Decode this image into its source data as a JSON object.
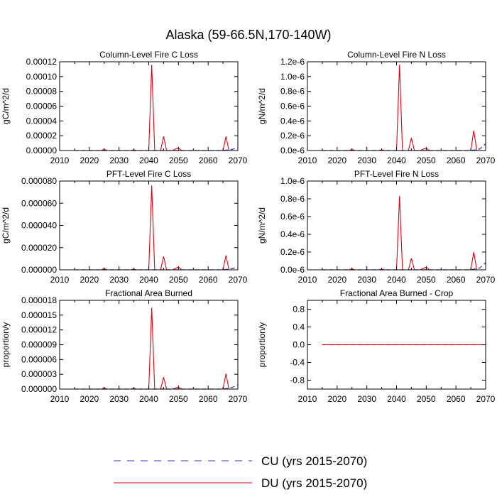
{
  "figure": {
    "title": "Alaska (59-66.5N,170-140W)"
  },
  "legend": {
    "entries": [
      {
        "label": "CU (yrs 2015-2070)",
        "color": "#3a3ac8",
        "dash": "dashed"
      },
      {
        "label": "DU (yrs 2015-2070)",
        "color": "#e8000b",
        "dash": "solid"
      }
    ]
  },
  "chart_data": [
    {
      "type": "line",
      "title": "Column-Level Fire C Loss",
      "ylabel": "gC/m^2/d",
      "xlim": [
        2010,
        2070
      ],
      "ylim": [
        0,
        0.00012
      ],
      "xticks": [
        2010,
        2020,
        2030,
        2040,
        2050,
        2060,
        2070
      ],
      "xtick_labels": [
        "2010",
        "2020",
        "2030",
        "2040",
        "2050",
        "2060",
        "2070"
      ],
      "yticks": [
        0,
        2e-05,
        4e-05,
        6e-05,
        8e-05,
        0.0001,
        0.00012
      ],
      "ytick_labels": [
        "0.00000",
        "0.00002",
        "0.00004",
        "0.00006",
        "0.00008",
        "0.00010",
        "0.00012"
      ],
      "series": [
        {
          "name": "CU (yrs 2015-2070)",
          "color": "#3a3ac8",
          "dash": "dashed",
          "x": [
            2015,
            2020,
            2025,
            2030,
            2035,
            2040,
            2045,
            2050,
            2055,
            2060,
            2065,
            2068,
            2070
          ],
          "y": [
            0,
            0,
            0,
            0,
            0,
            0,
            0,
            0,
            0,
            0,
            0,
            1.5e-06,
            4e-06
          ]
        },
        {
          "name": "DU (yrs 2015-2070)",
          "color": "#e8000b",
          "dash": "solid",
          "x": [
            2015,
            2020,
            2024,
            2025,
            2026,
            2030,
            2034,
            2035,
            2036,
            2040,
            2041,
            2042,
            2044,
            2045,
            2046,
            2048,
            2049,
            2050,
            2051,
            2055,
            2060,
            2065,
            2066,
            2067,
            2070
          ],
          "y": [
            0,
            0,
            0,
            1.5e-06,
            0,
            0,
            0,
            1e-06,
            0,
            0,
            0.000116,
            0,
            0,
            1.9e-05,
            0,
            0,
            2e-06,
            3.5e-06,
            0,
            0,
            0,
            0,
            1.9e-05,
            0,
            0
          ]
        }
      ]
    },
    {
      "type": "line",
      "title": "Column-Level Fire N Loss",
      "ylabel": "gN/m^2/d",
      "xlim": [
        2010,
        2070
      ],
      "ylim": [
        0,
        1.2e-06
      ],
      "xticks": [
        2010,
        2020,
        2030,
        2040,
        2050,
        2060,
        2070
      ],
      "xtick_labels": [
        "2010",
        "2020",
        "2030",
        "2040",
        "2050",
        "2060",
        "2070"
      ],
      "yticks": [
        0,
        2e-07,
        4e-07,
        6e-07,
        8e-07,
        1e-06,
        1.2e-06
      ],
      "ytick_labels": [
        "0.0e-6",
        "0.2e-6",
        "0.4e-6",
        "0.6e-6",
        "0.8e-6",
        "1.0e-6",
        "1.2e-6"
      ],
      "series": [
        {
          "name": "CU (yrs 2015-2070)",
          "color": "#3a3ac8",
          "dash": "dashed",
          "x": [
            2015,
            2020,
            2025,
            2030,
            2035,
            2040,
            2045,
            2050,
            2055,
            2060,
            2065,
            2068,
            2070
          ],
          "y": [
            0,
            0,
            0,
            0,
            0,
            0,
            0,
            0,
            0,
            0,
            0,
            2e-08,
            9e-08
          ]
        },
        {
          "name": "DU (yrs 2015-2070)",
          "color": "#e8000b",
          "dash": "solid",
          "x": [
            2015,
            2020,
            2024,
            2025,
            2026,
            2030,
            2034,
            2035,
            2036,
            2040,
            2041,
            2042,
            2044,
            2045,
            2046,
            2048,
            2049,
            2050,
            2051,
            2055,
            2060,
            2065,
            2066,
            2067,
            2070
          ],
          "y": [
            0,
            0,
            0,
            1.5e-08,
            0,
            0,
            0,
            1e-08,
            0,
            0,
            1.16e-06,
            0,
            0,
            1.7e-07,
            0,
            0,
            2e-08,
            3e-08,
            0,
            0,
            0,
            0,
            2.7e-07,
            0,
            0
          ]
        }
      ]
    },
    {
      "type": "line",
      "title": "PFT-Level Fire C Loss",
      "ylabel": "gC/m^2/d",
      "xlim": [
        2010,
        2070
      ],
      "ylim": [
        0,
        8e-05
      ],
      "xticks": [
        2010,
        2020,
        2030,
        2040,
        2050,
        2060,
        2070
      ],
      "xtick_labels": [
        "2010",
        "2020",
        "2030",
        "2040",
        "2050",
        "2060",
        "2070"
      ],
      "yticks": [
        0,
        2e-05,
        4e-05,
        6e-05,
        8e-05
      ],
      "ytick_labels": [
        "0.000000",
        "0.000020",
        "0.000040",
        "0.000060",
        "0.000080"
      ],
      "series": [
        {
          "name": "CU (yrs 2015-2070)",
          "color": "#3a3ac8",
          "dash": "dashed",
          "x": [
            2015,
            2020,
            2025,
            2030,
            2035,
            2040,
            2045,
            2050,
            2055,
            2060,
            2065,
            2068,
            2070
          ],
          "y": [
            0,
            0,
            0,
            0,
            0,
            0,
            0,
            0,
            0,
            0,
            0,
            1e-06,
            2.5e-06
          ]
        },
        {
          "name": "DU (yrs 2015-2070)",
          "color": "#e8000b",
          "dash": "solid",
          "x": [
            2015,
            2020,
            2024,
            2025,
            2026,
            2030,
            2034,
            2035,
            2036,
            2040,
            2041,
            2042,
            2044,
            2045,
            2046,
            2048,
            2049,
            2050,
            2051,
            2055,
            2060,
            2065,
            2066,
            2067,
            2070
          ],
          "y": [
            0,
            0,
            0,
            1e-06,
            0,
            0,
            0,
            7e-07,
            0,
            0,
            7.6e-05,
            0,
            0,
            1.2e-05,
            0,
            0,
            1.2e-06,
            2.5e-06,
            0,
            0,
            0,
            0,
            1.3e-05,
            0,
            0
          ]
        }
      ]
    },
    {
      "type": "line",
      "title": "PFT-Level Fire N Loss",
      "ylabel": "gN/m^2/d",
      "xlim": [
        2010,
        2070
      ],
      "ylim": [
        0,
        1e-06
      ],
      "xticks": [
        2010,
        2020,
        2030,
        2040,
        2050,
        2060,
        2070
      ],
      "xtick_labels": [
        "2010",
        "2020",
        "2030",
        "2040",
        "2050",
        "2060",
        "2070"
      ],
      "yticks": [
        0,
        2e-07,
        4e-07,
        6e-07,
        8e-07,
        1e-06
      ],
      "ytick_labels": [
        "0.0e-6",
        "0.2e-6",
        "0.4e-6",
        "0.6e-6",
        "0.8e-6",
        "1.0e-6"
      ],
      "series": [
        {
          "name": "CU (yrs 2015-2070)",
          "color": "#3a3ac8",
          "dash": "dashed",
          "x": [
            2015,
            2020,
            2025,
            2030,
            2035,
            2040,
            2045,
            2050,
            2055,
            2060,
            2065,
            2068,
            2070
          ],
          "y": [
            0,
            0,
            0,
            0,
            0,
            0,
            0,
            0,
            0,
            0,
            0,
            2e-08,
            8e-08
          ]
        },
        {
          "name": "DU (yrs 2015-2070)",
          "color": "#e8000b",
          "dash": "solid",
          "x": [
            2015,
            2020,
            2024,
            2025,
            2026,
            2030,
            2034,
            2035,
            2036,
            2040,
            2041,
            2042,
            2044,
            2045,
            2046,
            2048,
            2049,
            2050,
            2051,
            2055,
            2060,
            2065,
            2066,
            2067,
            2070
          ],
          "y": [
            0,
            0,
            0,
            1e-08,
            0,
            0,
            0,
            8e-09,
            0,
            0,
            8.3e-07,
            0,
            0,
            1.3e-07,
            0,
            0,
            1.5e-08,
            3e-08,
            0,
            0,
            0,
            0,
            2e-07,
            0,
            0
          ]
        }
      ]
    },
    {
      "type": "line",
      "title": "Fractional Area Burned",
      "ylabel": "proportion/y",
      "xlim": [
        2010,
        2070
      ],
      "ylim": [
        0,
        1.8e-05
      ],
      "xticks": [
        2010,
        2020,
        2030,
        2040,
        2050,
        2060,
        2070
      ],
      "xtick_labels": [
        "2010",
        "2020",
        "2030",
        "2040",
        "2050",
        "2060",
        "2070"
      ],
      "yticks": [
        0,
        3e-06,
        6e-06,
        9e-06,
        1.2e-05,
        1.5e-05,
        1.8e-05
      ],
      "ytick_labels": [
        "0.000000",
        "0.000003",
        "0.000006",
        "0.000009",
        "0.000012",
        "0.000015",
        "0.000018"
      ],
      "series": [
        {
          "name": "CU (yrs 2015-2070)",
          "color": "#3a3ac8",
          "dash": "dashed",
          "x": [
            2015,
            2020,
            2025,
            2030,
            2035,
            2040,
            2045,
            2050,
            2055,
            2060,
            2065,
            2068,
            2070
          ],
          "y": [
            0,
            0,
            0,
            0,
            0,
            0,
            0,
            0,
            0,
            0,
            0,
            3e-07,
            9e-07
          ]
        },
        {
          "name": "DU (yrs 2015-2070)",
          "color": "#e8000b",
          "dash": "solid",
          "x": [
            2015,
            2020,
            2024,
            2025,
            2026,
            2030,
            2034,
            2035,
            2036,
            2040,
            2041,
            2042,
            2044,
            2045,
            2046,
            2048,
            2049,
            2050,
            2051,
            2055,
            2060,
            2065,
            2066,
            2067,
            2070
          ],
          "y": [
            0,
            0,
            0,
            2e-07,
            0,
            0,
            0,
            1.5e-07,
            0,
            0,
            1.65e-05,
            0,
            0,
            2.4e-06,
            0,
            0,
            2e-07,
            4e-07,
            0,
            0,
            0,
            0,
            3.1e-06,
            0,
            0
          ]
        }
      ]
    },
    {
      "type": "line",
      "title": "Fractional Area Burned - Crop",
      "ylabel": "proportion/y",
      "xlim": [
        2010,
        2070
      ],
      "ylim": [
        -1,
        1
      ],
      "xticks": [
        2010,
        2020,
        2030,
        2040,
        2050,
        2060,
        2070
      ],
      "xtick_labels": [
        "2010",
        "2020",
        "2030",
        "2040",
        "2050",
        "2060",
        "2070"
      ],
      "yticks": [
        -0.8,
        -0.4,
        0,
        0.4,
        0.8
      ],
      "ytick_labels": [
        "-0.8",
        "-0.4",
        "0.0",
        "0.4",
        "0.8"
      ],
      "series": [
        {
          "name": "CU (yrs 2015-2070)",
          "color": "#3a3ac8",
          "dash": "dashed",
          "x": [
            2015,
            2070
          ],
          "y": [
            0,
            0
          ]
        },
        {
          "name": "DU (yrs 2015-2070)",
          "color": "#e8000b",
          "dash": "solid",
          "x": [
            2015,
            2070
          ],
          "y": [
            0,
            0
          ]
        }
      ]
    }
  ]
}
